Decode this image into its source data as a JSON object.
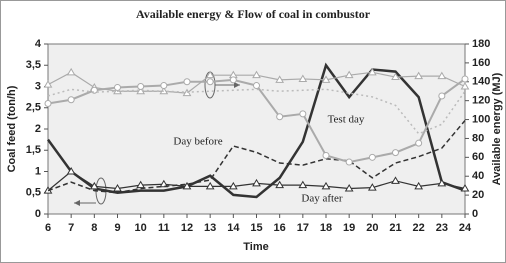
{
  "chart_data": {
    "type": "line",
    "title": "Available energy & Flow of coal in combustor",
    "x_label": "Time",
    "y_label": "Coal feed (ton/h)",
    "y2_label": "Available energy (MJ)",
    "x": [
      6,
      7,
      8,
      9,
      10,
      11,
      12,
      13,
      14,
      15,
      16,
      17,
      18,
      19,
      20,
      21,
      22,
      23,
      24
    ],
    "xlim": [
      6,
      24
    ],
    "xticks": [
      6,
      7,
      8,
      9,
      10,
      11,
      12,
      13,
      14,
      15,
      16,
      17,
      18,
      19,
      20,
      21,
      22,
      23,
      24
    ],
    "ylim": [
      0,
      4
    ],
    "yticks": [
      0,
      {
        "value": 0.5,
        "label": "0,5"
      },
      1,
      {
        "value": 1.5,
        "label": "1,5"
      },
      2,
      {
        "value": 2.5,
        "label": "2,5"
      },
      3,
      {
        "value": 3.5,
        "label": "3,5"
      },
      4
    ],
    "y2lim": [
      0,
      180
    ],
    "y2ticks": [
      0,
      20,
      40,
      60,
      80,
      100,
      120,
      140,
      160,
      180
    ],
    "annotations": [
      "Test day",
      "Day before",
      "Day after"
    ],
    "series": [
      {
        "color": "#333333",
        "width": 2.5,
        "dash": "solid",
        "marker": "none",
        "values": [
          1.75,
          1.0,
          0.6,
          0.5,
          0.55,
          0.55,
          0.65,
          0.9,
          0.45,
          0.4,
          0.85,
          1.7,
          3.5,
          2.75,
          3.4,
          3.35,
          2.75,
          0.75,
          0.55
        ]
      },
      {
        "color": "#333333",
        "width": 1.2,
        "dash": "solid",
        "marker": "triangle",
        "values": [
          0.55,
          1.0,
          0.65,
          0.6,
          0.68,
          0.7,
          0.65,
          0.65,
          0.65,
          0.72,
          0.68,
          0.68,
          0.65,
          0.6,
          0.62,
          0.78,
          0.65,
          0.72,
          0.6
        ]
      },
      {
        "color": "#333333",
        "width": 1.5,
        "dash": "dashed",
        "marker": "none",
        "values": [
          0.55,
          0.75,
          0.55,
          0.5,
          0.6,
          0.65,
          0.7,
          0.8,
          1.6,
          1.45,
          1.2,
          1.15,
          1.3,
          1.25,
          0.85,
          1.2,
          1.35,
          1.55,
          2.2
        ]
      },
      {
        "color": "#aaaaaa",
        "width": 1.2,
        "dash": "solid",
        "marker": "triangle",
        "axis": "y2",
        "values": [
          137,
          150,
          134,
          130,
          130,
          130,
          128,
          147,
          147,
          147,
          142,
          143,
          142,
          147,
          150,
          145,
          146,
          146,
          135
        ]
      },
      {
        "color": "#aaaaaa",
        "width": 2,
        "dash": "solid",
        "marker": "circle",
        "axis": "y2",
        "values": [
          117,
          121,
          131,
          134,
          135,
          136,
          140,
          140,
          142,
          136,
          103,
          106,
          62,
          55,
          60,
          65,
          75,
          125,
          143
        ]
      },
      {
        "color": "#bbbbbb",
        "width": 1.5,
        "dash": "dotted",
        "marker": "none",
        "axis": "y2",
        "values": [
          125,
          132,
          129,
          130,
          131,
          130,
          129,
          130,
          131,
          132,
          130,
          131,
          132,
          128,
          124,
          115,
          85,
          95,
          130
        ]
      }
    ]
  }
}
